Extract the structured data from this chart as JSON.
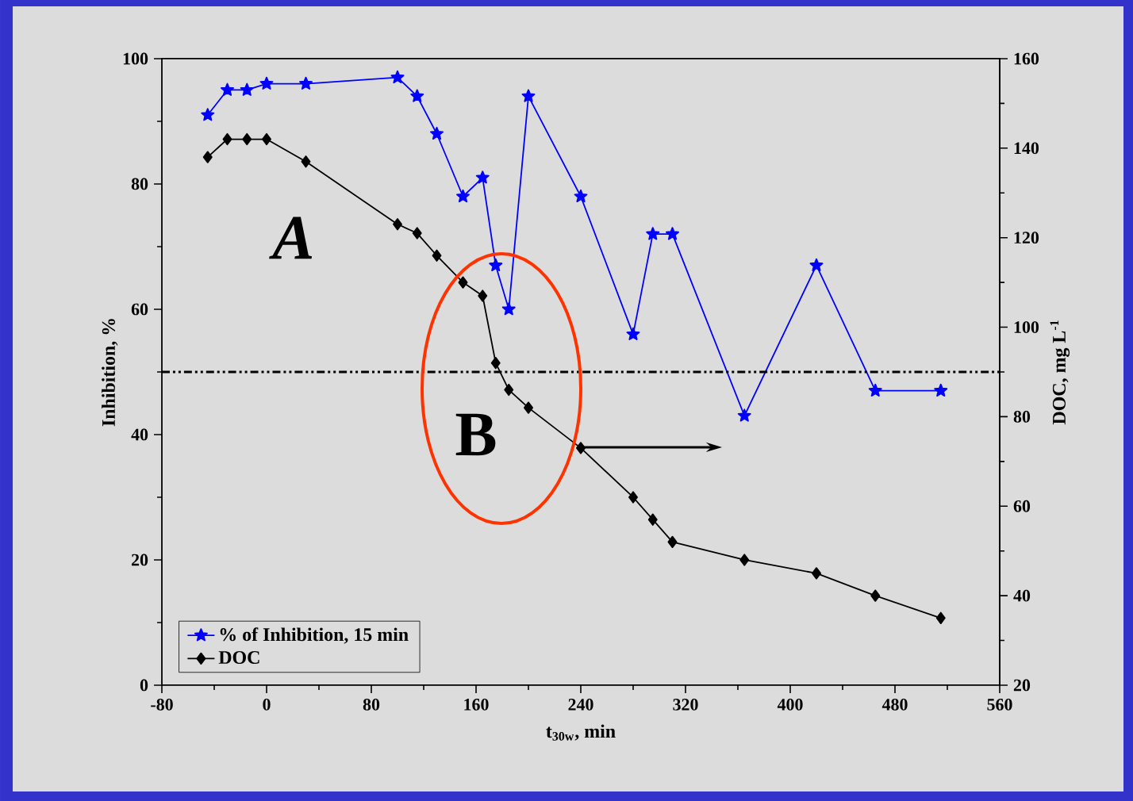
{
  "chart_data": {
    "type": "line",
    "xlabel": "t$_{30w}$, min",
    "ylabel": "Inhibition, %",
    "y2label": "DOC, mg L$^{-1}$",
    "annotations": [
      "A",
      "B"
    ],
    "series": [
      {
        "name": "% of Inhibition, 15 min",
        "color": "#0000ff",
        "marker": "star",
        "x": [
          -45,
          -30,
          -15,
          0,
          30,
          100,
          115,
          130,
          150,
          165,
          175,
          185,
          200,
          240,
          280,
          295,
          310,
          365,
          420,
          465,
          515
        ],
        "values": [
          91,
          95,
          95,
          96,
          96,
          97,
          94,
          88,
          78,
          81,
          67,
          60,
          94,
          78,
          56,
          72,
          72,
          43,
          67,
          47,
          47
        ]
      },
      {
        "name": "DOC",
        "color": "#000000",
        "marker": "diamond",
        "axis": "y2",
        "x": [
          -45,
          -30,
          -15,
          0,
          30,
          100,
          115,
          130,
          150,
          165,
          175,
          185,
          200,
          240,
          280,
          295,
          310,
          365,
          420,
          465,
          515
        ],
        "values": [
          138,
          142,
          142,
          142,
          137,
          123,
          121,
          116,
          110,
          107,
          92,
          86,
          82,
          73,
          62,
          57,
          52,
          48,
          45,
          40,
          35
        ]
      }
    ],
    "xlim": [
      -80,
      560
    ],
    "xticks": [
      -80,
      0,
      80,
      160,
      240,
      320,
      400,
      480,
      560
    ],
    "ylim": [
      0,
      100
    ],
    "yticks": [
      0,
      20,
      40,
      60,
      80,
      100
    ],
    "y2lim": [
      20,
      160
    ],
    "y2ticks": [
      20,
      40,
      60,
      80,
      100,
      120,
      140,
      160
    ],
    "ref_lines": [
      {
        "axis": "y",
        "value": 50,
        "color": "#000000",
        "line_style": "dashdotdotted"
      }
    ],
    "legend": "bottom left"
  }
}
